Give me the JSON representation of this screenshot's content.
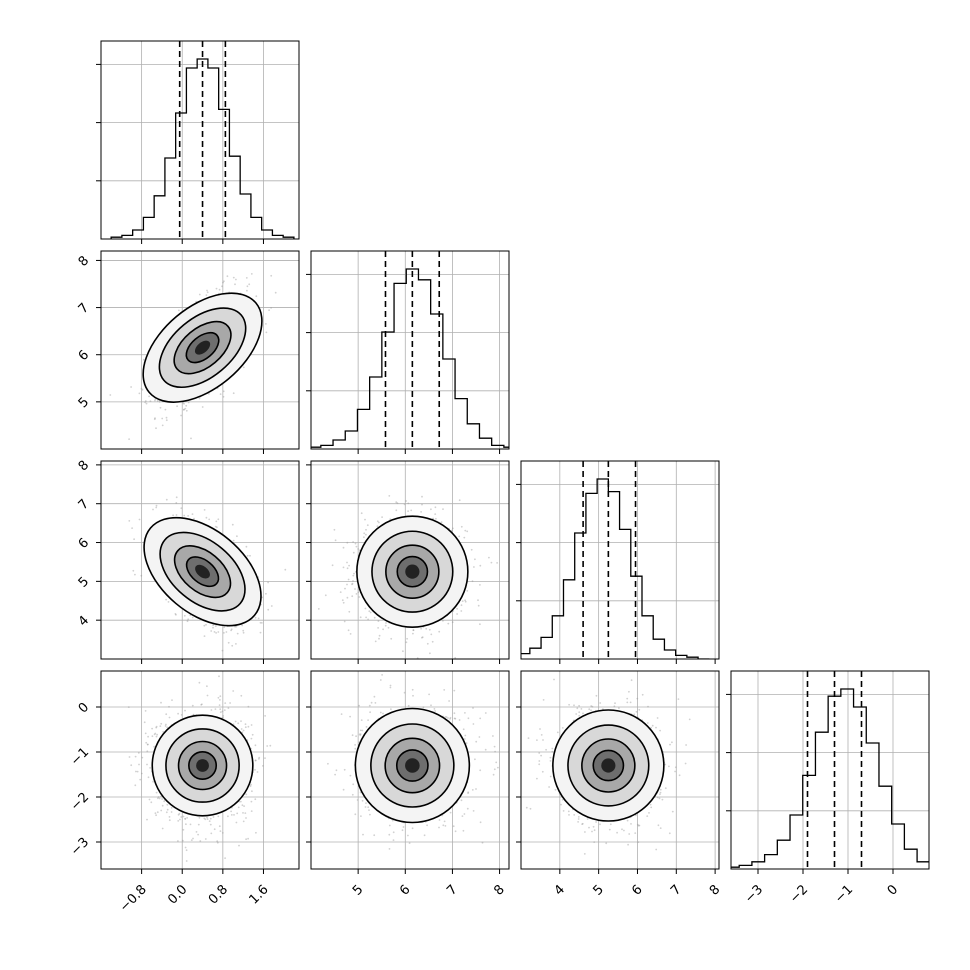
{
  "chart_data": {
    "type": "corner",
    "grid": true,
    "quantile_line_style": "dashed",
    "parameters": [
      {
        "ticks": [
          "−0.8",
          "0.0",
          "0.8",
          "1.6"
        ],
        "tick_values": [
          -0.8,
          0.0,
          0.8,
          1.6
        ],
        "range": [
          -1.6,
          2.3
        ],
        "quantiles": [
          -0.05,
          0.4,
          0.85
        ],
        "mean": 0.4,
        "sd": 0.45
      },
      {
        "ticks": [
          "5",
          "6",
          "7",
          "8"
        ],
        "tick_values": [
          5,
          6,
          7,
          8
        ],
        "range": [
          4.0,
          8.2
        ],
        "quantiles": [
          5.58,
          6.15,
          6.72
        ],
        "mean": 6.15,
        "sd": 0.55
      },
      {
        "ticks": [
          "4",
          "5",
          "6",
          "7",
          "8"
        ],
        "tick_values": [
          4,
          5,
          6,
          7,
          8
        ],
        "range": [
          3.0,
          8.1
        ],
        "quantiles": [
          4.6,
          5.25,
          5.95
        ],
        "mean": 5.25,
        "sd": 0.65
      },
      {
        "ticks": [
          "−3",
          "−2",
          "−1",
          "0"
        ],
        "tick_values": [
          -3,
          -2,
          -1,
          0
        ],
        "range": [
          -3.6,
          0.8
        ],
        "quantiles": [
          -1.9,
          -1.3,
          -0.7
        ],
        "mean": -1.3,
        "sd": 0.6
      }
    ],
    "histograms": [
      {
        "param": 0,
        "counts": [
          1,
          2,
          5,
          12,
          24,
          45,
          70,
          95,
          100,
          95,
          72,
          46,
          25,
          12,
          5,
          2,
          1
        ]
      },
      {
        "param": 1,
        "counts": [
          1,
          2,
          5,
          10,
          22,
          40,
          65,
          92,
          100,
          94,
          75,
          50,
          28,
          14,
          6,
          2,
          1
        ]
      },
      {
        "param": 2,
        "counts": [
          1,
          3,
          6,
          12,
          24,
          44,
          70,
          92,
          100,
          93,
          72,
          46,
          24,
          11,
          5,
          2,
          1,
          0
        ]
      },
      {
        "param": 3,
        "counts": [
          1,
          2,
          4,
          8,
          16,
          30,
          52,
          76,
          96,
          100,
          90,
          70,
          46,
          25,
          11,
          4,
          1
        ]
      }
    ],
    "correlations": {
      "1-0": 0.55,
      "2-0": -0.5,
      "2-1": 0.0,
      "3-0": 0.0,
      "3-1": 0.0,
      "3-2": 0.0
    }
  }
}
